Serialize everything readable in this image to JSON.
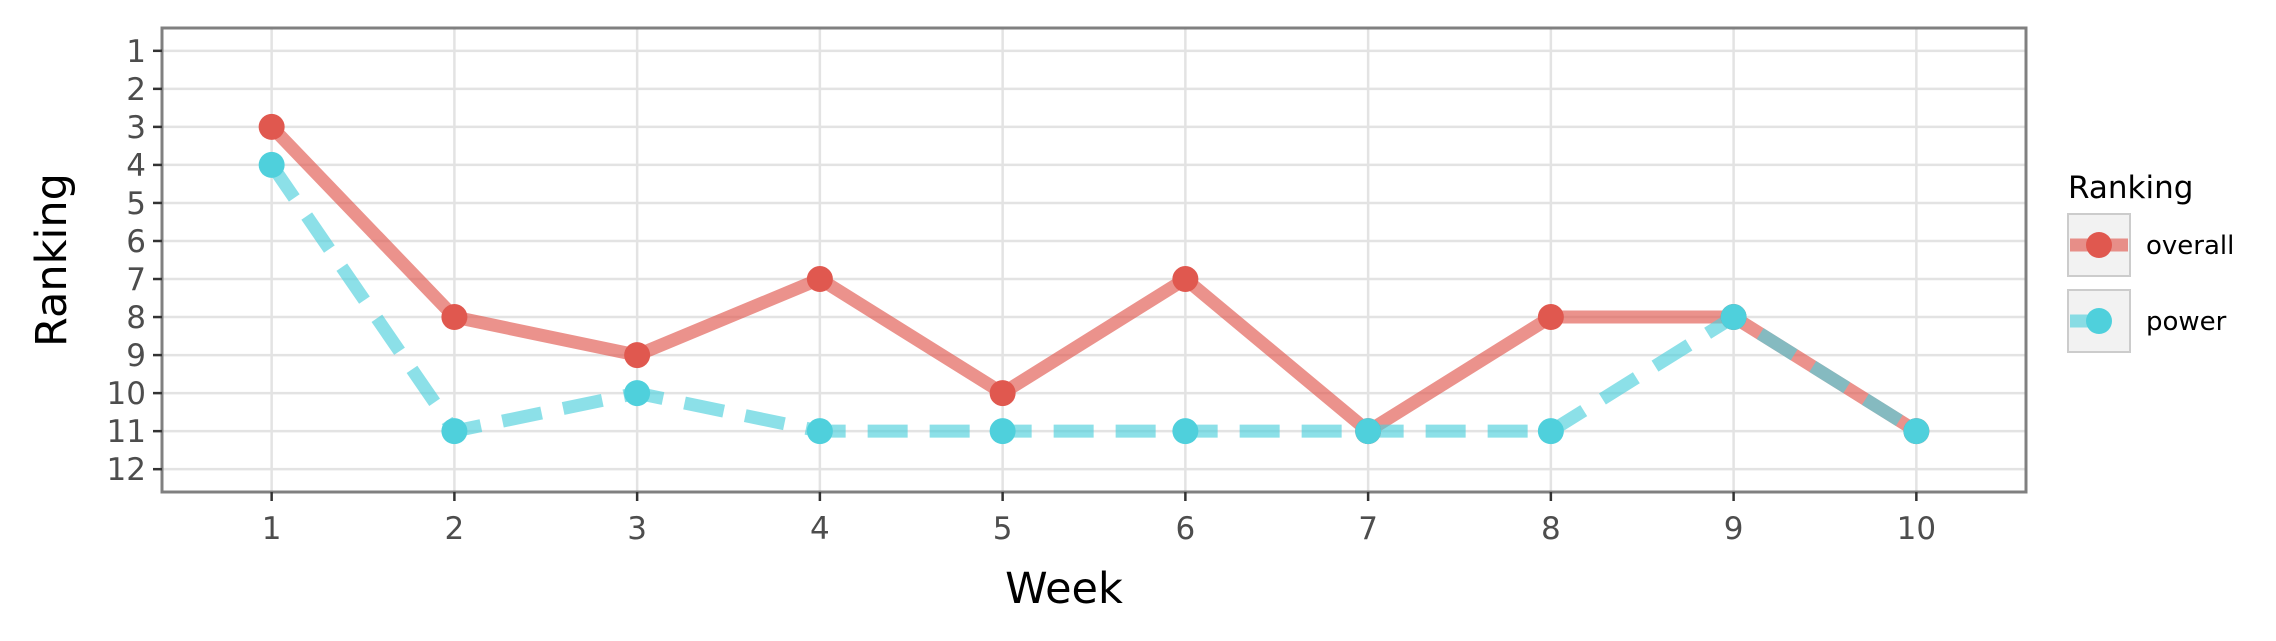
{
  "chart_data": {
    "type": "line",
    "x": [
      1,
      2,
      3,
      4,
      5,
      6,
      7,
      8,
      9,
      10
    ],
    "series": [
      {
        "name": "overall",
        "values": [
          3,
          8,
          9,
          7,
          10,
          7,
          11,
          8,
          8,
          11
        ],
        "color": "#e0584f",
        "line_style": "solid"
      },
      {
        "name": "power",
        "values": [
          4,
          11,
          10,
          11,
          11,
          11,
          11,
          11,
          8,
          11
        ],
        "color": "#4fd0dc",
        "line_style": "dashed"
      }
    ],
    "xlabel": "Week",
    "ylabel": "Ranking",
    "legend_title": "Ranking",
    "legend_position": "right",
    "xlim": [
      0.4,
      10.6
    ],
    "ylim": [
      0.4,
      12.6
    ],
    "y_reversed": true,
    "x_ticks": [
      1,
      2,
      3,
      4,
      5,
      6,
      7,
      8,
      9,
      10
    ],
    "y_ticks": [
      1,
      2,
      3,
      4,
      5,
      6,
      7,
      8,
      9,
      10,
      11,
      12
    ],
    "grid": true
  }
}
